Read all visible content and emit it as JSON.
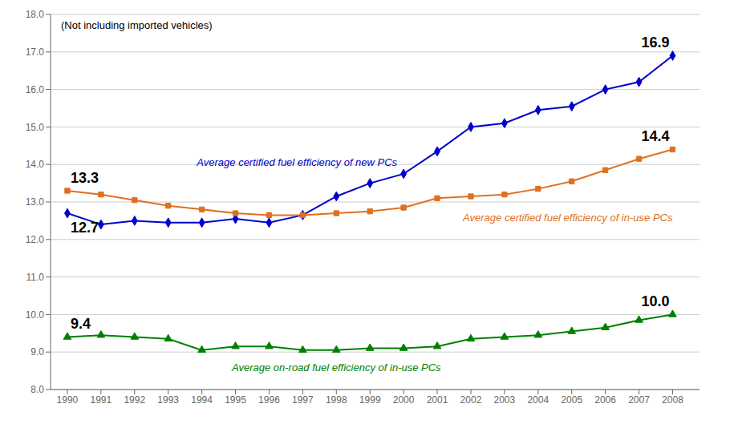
{
  "chart_data": {
    "type": "line",
    "subtitle": "(Not including imported vehicles)",
    "x": [
      1990,
      1991,
      1992,
      1993,
      1994,
      1995,
      1996,
      1997,
      1998,
      1999,
      2000,
      2001,
      2002,
      2003,
      2004,
      2005,
      2006,
      2007,
      2008
    ],
    "series": [
      {
        "name": "Average certified fuel efficiency of new PCs",
        "color": "#0000cc",
        "marker": "diamond",
        "values": [
          12.7,
          12.4,
          12.5,
          12.45,
          12.45,
          12.55,
          12.45,
          12.65,
          13.15,
          13.5,
          13.75,
          14.35,
          15.0,
          15.1,
          15.45,
          15.55,
          16.0,
          16.2,
          16.9
        ]
      },
      {
        "name": "Average certified fuel efficiency of in-use PCs",
        "color": "#e07020",
        "marker": "square",
        "values": [
          13.3,
          13.2,
          13.05,
          12.9,
          12.8,
          12.7,
          12.65,
          12.65,
          12.7,
          12.75,
          12.85,
          13.1,
          13.15,
          13.2,
          13.35,
          13.55,
          13.85,
          14.15,
          14.4
        ]
      },
      {
        "name": "Average on-road fuel efficiency of in-use PCs",
        "color": "#008000",
        "marker": "triangle",
        "values": [
          9.4,
          9.45,
          9.4,
          9.35,
          9.05,
          9.15,
          9.15,
          9.05,
          9.05,
          9.1,
          9.1,
          9.15,
          9.35,
          9.4,
          9.45,
          9.55,
          9.65,
          9.85,
          10.0
        ]
      }
    ],
    "annotations": [
      {
        "text": "12.7",
        "x": 1990,
        "y": 12.7
      },
      {
        "text": "13.3",
        "x": 1990,
        "y": 13.3
      },
      {
        "text": "9.4",
        "x": 1990,
        "y": 9.4
      },
      {
        "text": "16.9",
        "x": 2008,
        "y": 16.9
      },
      {
        "text": "14.4",
        "x": 2008,
        "y": 14.4
      },
      {
        "text": "10.0",
        "x": 2008,
        "y": 10.0
      }
    ],
    "xlim": [
      1989.5,
      2008.8
    ],
    "xticks": [
      1990,
      1991,
      1992,
      1993,
      1994,
      1995,
      1996,
      1997,
      1998,
      1999,
      2000,
      2001,
      2002,
      2003,
      2004,
      2005,
      2006,
      2007,
      2008
    ],
    "ylim": [
      8.0,
      18.0
    ],
    "yticks": [
      {
        "value": 8,
        "label": "8.0"
      },
      {
        "value": 9,
        "label": "9.0"
      },
      {
        "value": 10,
        "label": "10.0"
      },
      {
        "value": 11,
        "label": "11.0"
      },
      {
        "value": 12,
        "label": "12.0"
      },
      {
        "value": 13,
        "label": "13.0"
      },
      {
        "value": 14,
        "label": "14.0"
      },
      {
        "value": 15,
        "label": "15.0"
      },
      {
        "value": 16,
        "label": "16.0"
      },
      {
        "value": 17,
        "label": "17.0"
      },
      {
        "value": 18,
        "label": "18.0"
      }
    ],
    "grid": true
  }
}
